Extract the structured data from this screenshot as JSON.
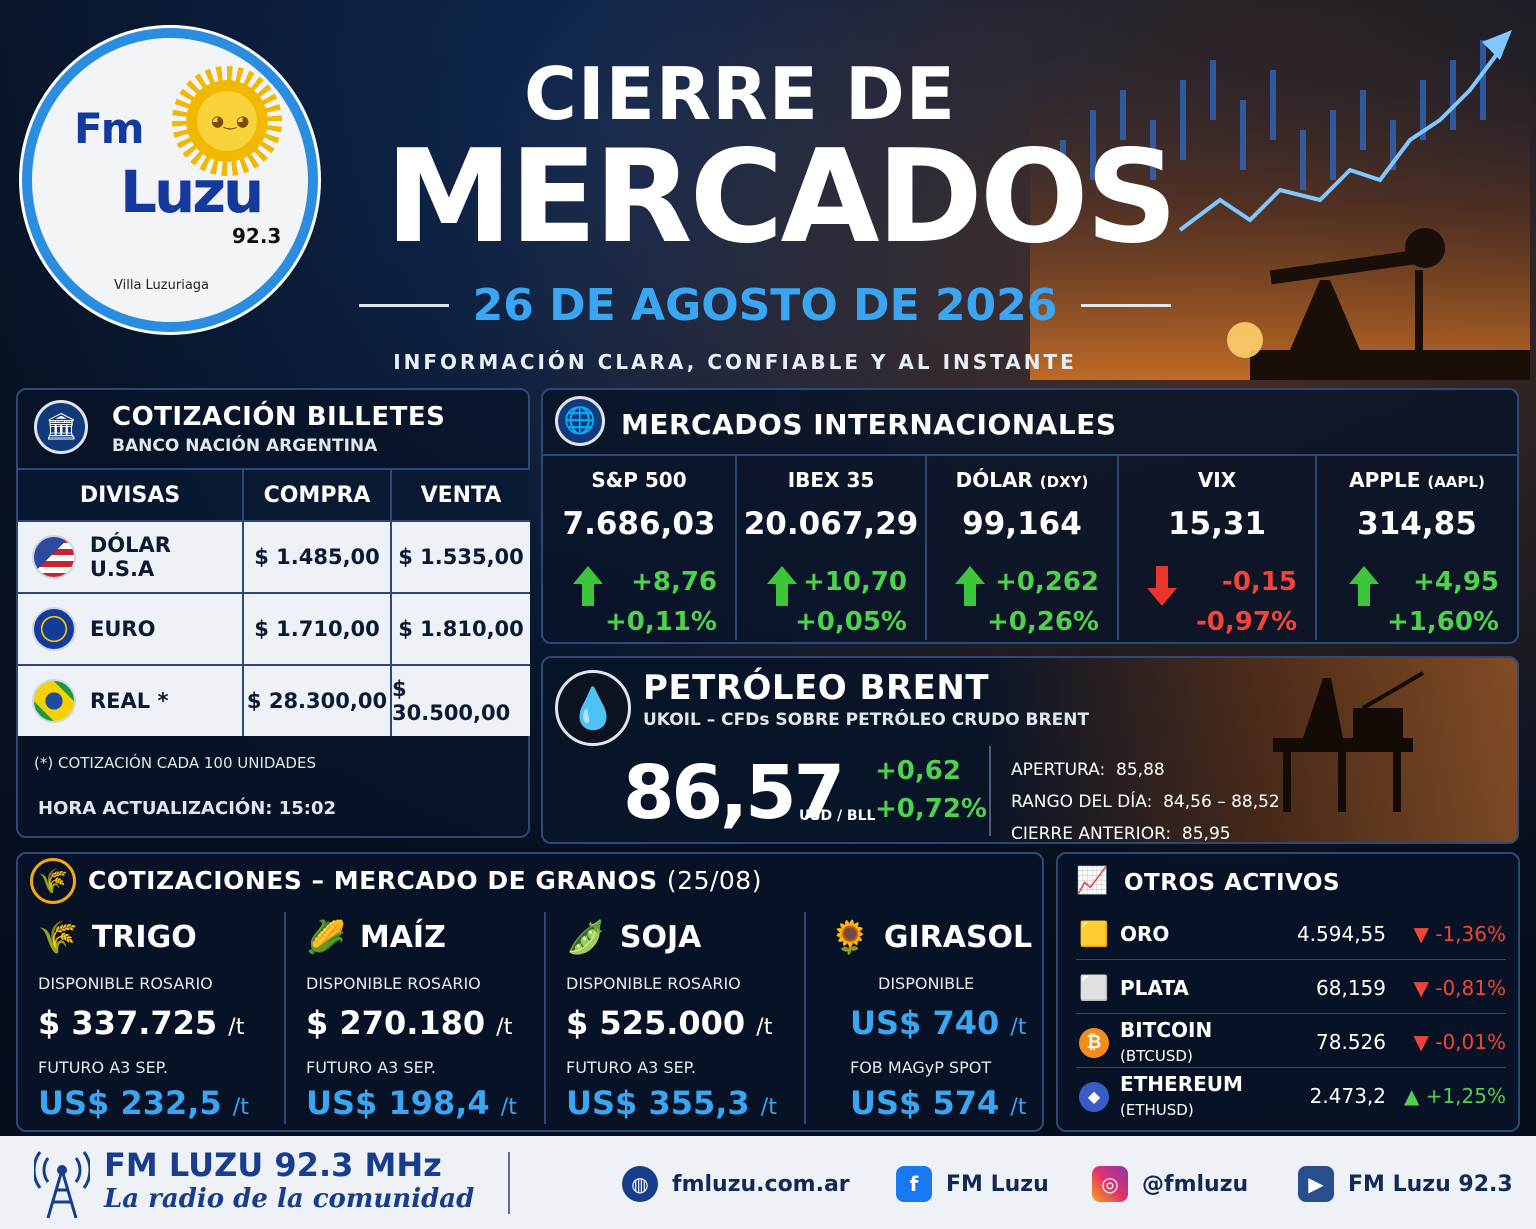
{
  "header": {
    "brand": {
      "fm": "Fm",
      "luzu": "Luzu",
      "freq": "92.3",
      "location": "Villa Luzuriaga"
    },
    "title_line1": "CIERRE DE",
    "title_line2": "MERCADOS",
    "date": "26 DE AGOSTO DE 2026",
    "tagline": "INFORMACIÓN CLARA, CONFIABLE Y AL INSTANTE"
  },
  "billetes": {
    "title": "COTIZACIÓN BILLETES",
    "subtitle": "BANCO NACIÓN ARGENTINA",
    "columns": [
      "DIVISAS",
      "COMPRA",
      "VENTA"
    ],
    "rows": [
      {
        "currency": "DÓLAR U.S.A",
        "flag": "us-flag-icon",
        "buy": "$ 1.485,00",
        "sell": "$ 1.535,00"
      },
      {
        "currency": "EURO",
        "flag": "eu-flag-icon",
        "buy": "$ 1.710,00",
        "sell": "$ 1.810,00"
      },
      {
        "currency": "REAL *",
        "flag": "br-flag-icon",
        "buy": "$ 28.300,00",
        "sell": "$ 30.500,00"
      }
    ],
    "note": "(*) COTIZACIÓN CADA 100 UNIDADES",
    "update": "HORA ACTUALIZACIÓN: 15:02"
  },
  "internacionales": {
    "title": "MERCADOS INTERNACIONALES",
    "items": [
      {
        "name": "S&P 500",
        "suffix": "",
        "value": "7.686,03",
        "change": "+8,76",
        "pct": "+0,11%",
        "dir": "up"
      },
      {
        "name": "IBEX 35",
        "suffix": "",
        "value": "20.067,29",
        "change": "+10,70",
        "pct": "+0,05%",
        "dir": "up"
      },
      {
        "name": "DÓLAR",
        "suffix": "(DXY)",
        "value": "99,164",
        "change": "+0,262",
        "pct": "+0,26%",
        "dir": "up"
      },
      {
        "name": "VIX",
        "suffix": "",
        "value": "15,31",
        "change": "-0,15",
        "pct": "-0,97%",
        "dir": "down"
      },
      {
        "name": "APPLE",
        "suffix": "(AAPL)",
        "value": "314,85",
        "change": "+4,95",
        "pct": "+1,60%",
        "dir": "up"
      }
    ]
  },
  "brent": {
    "title": "PETRÓLEO BRENT",
    "subtitle": "UKOIL – CFDs SOBRE PETRÓLEO CRUDO BRENT",
    "price": "86,57",
    "unit": "USD / BLL",
    "change": "+0,62",
    "pct": "+0,72%",
    "apertura_label": "APERTURA:",
    "apertura": "85,88",
    "rango_label": "RANGO DEL DÍA:",
    "rango": "84,56 – 88,52",
    "cierre_label": "CIERRE ANTERIOR:",
    "cierre": "85,95"
  },
  "granos": {
    "title": "COTIZACIONES – MERCADO DE GRANOS",
    "date": "(25/08)",
    "items": [
      {
        "name": "TRIGO",
        "icon": "wheat-icon",
        "label1": "DISPONIBLE ROSARIO",
        "price1": "$ 337.725",
        "unit1": "/t",
        "label2": "FUTURO A3 SEP.",
        "price2": "US$ 232,5",
        "unit2": "/t"
      },
      {
        "name": "MAÍZ",
        "icon": "corn-icon",
        "label1": "DISPONIBLE ROSARIO",
        "price1": "$ 270.180",
        "unit1": "/t",
        "label2": "FUTURO A3 SEP.",
        "price2": "US$ 198,4",
        "unit2": "/t"
      },
      {
        "name": "SOJA",
        "icon": "soy-icon",
        "label1": "DISPONIBLE ROSARIO",
        "price1": "$ 525.000",
        "unit1": "/t",
        "label2": "FUTURO A3 SEP.",
        "price2": "US$ 355,3",
        "unit2": "/t"
      },
      {
        "name": "GIRASOL",
        "icon": "sunflower-icon",
        "label1": "DISPONIBLE",
        "price1": "US$ 740",
        "unit1": "/t",
        "label2": "FOB MAGyP SPOT",
        "price2": "US$ 574",
        "unit2": "/t"
      }
    ]
  },
  "otros": {
    "title": "OTROS ACTIVOS",
    "items": [
      {
        "name": "ORO",
        "suffix": "",
        "icon": "gold-icon",
        "value": "4.594,55",
        "change": "-1,36%",
        "dir": "down"
      },
      {
        "name": "PLATA",
        "suffix": "",
        "icon": "silver-icon",
        "value": "68,159",
        "change": "-0,81%",
        "dir": "down"
      },
      {
        "name": "BITCOIN",
        "suffix": "(BTCUSD)",
        "icon": "bitcoin-icon",
        "value": "78.526",
        "change": "-0,01%",
        "dir": "down"
      },
      {
        "name": "ETHEREUM",
        "suffix": "(ETHUSD)",
        "icon": "ethereum-icon",
        "value": "2.473,2",
        "change": "+1,25%",
        "dir": "up"
      }
    ]
  },
  "footer": {
    "brand": "FM LUZU 92.3 MHz",
    "slogan": "La radio de la comunidad",
    "web": "fmluzu.com.ar",
    "facebook": "FM Luzu",
    "instagram": "@fmluzu",
    "youtube": "FM Luzu 92.3"
  },
  "colors": {
    "accent": "#3aa6f2",
    "up": "#4ed14e",
    "down": "#f2453a",
    "panel_border": "#2b4a7a"
  }
}
